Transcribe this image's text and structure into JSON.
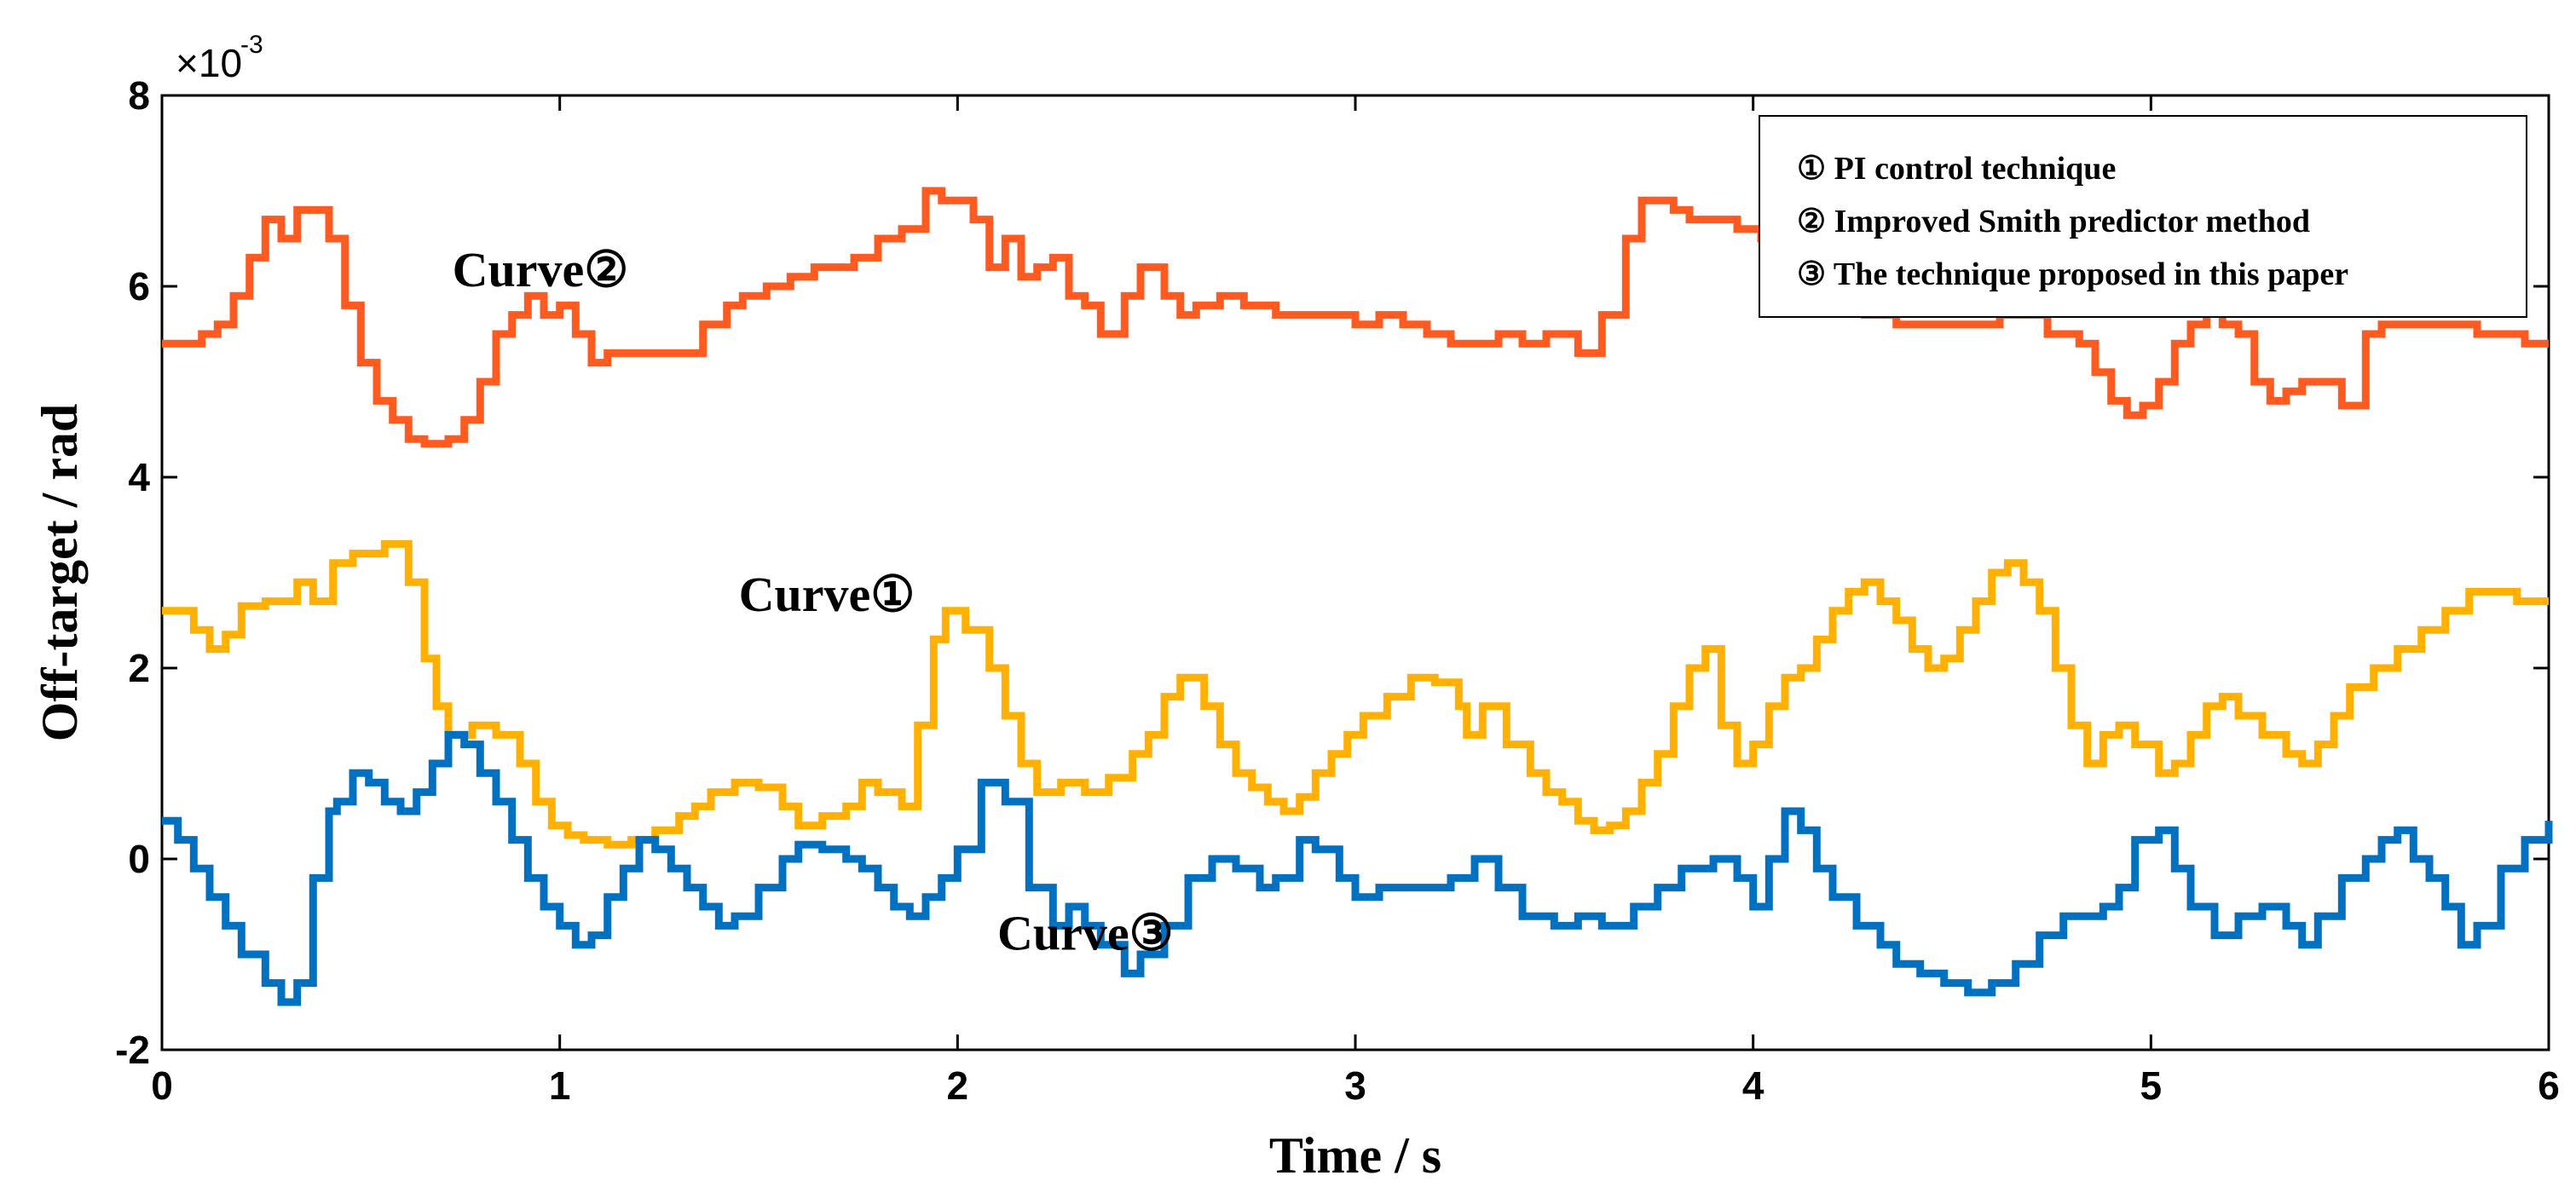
{
  "chart_data": {
    "type": "line",
    "style": "step",
    "xlabel": "Time / s",
    "ylabel": "Off-target / rad",
    "y_scale_factor": "×10",
    "y_scale_exponent": "-3",
    "xlim": [
      0,
      6
    ],
    "ylim": [
      -2,
      8
    ],
    "xticks": [
      "0",
      "1",
      "2",
      "3",
      "4",
      "5",
      "6"
    ],
    "yticks": [
      "-2",
      "0",
      "2",
      "4",
      "6",
      "8"
    ],
    "xtick_values": [
      0,
      1,
      2,
      3,
      4,
      5,
      6
    ],
    "ytick_values": [
      -2,
      0,
      2,
      4,
      6,
      8
    ],
    "legend_position": "top-right",
    "legend": [
      "① PI control technique",
      "② Improved Smith predictor method",
      "③ The technique proposed in this paper"
    ],
    "annotations": [
      {
        "text": "Curve②",
        "x": 0.73,
        "y": 6.0
      },
      {
        "text": "Curve①",
        "x": 1.45,
        "y": 2.6
      },
      {
        "text": "Curve③",
        "x": 2.1,
        "y": -0.95
      }
    ],
    "series": [
      {
        "name": "Curve① PI control technique",
        "color": "#FFB000",
        "x": [
          0,
          0.08,
          0.12,
          0.16,
          0.2,
          0.26,
          0.34,
          0.38,
          0.43,
          0.48,
          0.56,
          0.62,
          0.66,
          0.69,
          0.72,
          0.78,
          0.84,
          0.9,
          0.94,
          0.98,
          1.02,
          1.06,
          1.12,
          1.18,
          1.24,
          1.3,
          1.34,
          1.38,
          1.44,
          1.5,
          1.56,
          1.6,
          1.66,
          1.72,
          1.76,
          1.8,
          1.86,
          1.9,
          1.94,
          1.97,
          2.02,
          2.08,
          2.12,
          2.16,
          2.2,
          2.26,
          2.32,
          2.38,
          2.44,
          2.48,
          2.52,
          2.56,
          2.62,
          2.66,
          2.7,
          2.74,
          2.78,
          2.82,
          2.86,
          2.9,
          2.94,
          2.98,
          3.02,
          3.08,
          3.14,
          3.2,
          3.26,
          3.28,
          3.32,
          3.38,
          3.44,
          3.48,
          3.52,
          3.56,
          3.6,
          3.64,
          3.68,
          3.72,
          3.76,
          3.8,
          3.84,
          3.88,
          3.92,
          3.96,
          4.0,
          4.04,
          4.08,
          4.12,
          4.16,
          4.2,
          4.24,
          4.28,
          4.32,
          4.36,
          4.4,
          4.44,
          4.48,
          4.52,
          4.56,
          4.6,
          4.64,
          4.68,
          4.72,
          4.76,
          4.8,
          4.84,
          4.88,
          4.92,
          4.96,
          5.02,
          5.06,
          5.1,
          5.14,
          5.18,
          5.22,
          5.28,
          5.34,
          5.38,
          5.42,
          5.46,
          5.5,
          5.56,
          5.62,
          5.68,
          5.74,
          5.8,
          5.86,
          5.92,
          5.96,
          6.0
        ],
        "y": [
          2.6,
          2.4,
          2.2,
          2.35,
          2.65,
          2.7,
          2.9,
          2.7,
          3.1,
          3.2,
          3.3,
          2.9,
          2.1,
          1.6,
          1.3,
          1.4,
          1.3,
          1.0,
          0.6,
          0.35,
          0.25,
          0.2,
          0.15,
          0.2,
          0.3,
          0.45,
          0.55,
          0.7,
          0.8,
          0.75,
          0.55,
          0.35,
          0.45,
          0.55,
          0.8,
          0.7,
          0.55,
          1.4,
          2.3,
          2.6,
          2.4,
          2.0,
          1.5,
          1.0,
          0.7,
          0.8,
          0.7,
          0.85,
          1.1,
          1.3,
          1.7,
          1.9,
          1.6,
          1.2,
          0.9,
          0.75,
          0.6,
          0.5,
          0.65,
          0.9,
          1.1,
          1.3,
          1.5,
          1.7,
          1.9,
          1.85,
          1.6,
          1.3,
          1.6,
          1.2,
          0.9,
          0.7,
          0.6,
          0.4,
          0.3,
          0.35,
          0.5,
          0.8,
          1.1,
          1.6,
          2.0,
          2.2,
          1.4,
          1.0,
          1.2,
          1.6,
          1.9,
          2.0,
          2.3,
          2.6,
          2.8,
          2.9,
          2.7,
          2.5,
          2.2,
          2.0,
          2.1,
          2.4,
          2.7,
          3.0,
          3.1,
          2.9,
          2.6,
          2.0,
          1.4,
          1.0,
          1.3,
          1.4,
          1.2,
          0.9,
          1.0,
          1.3,
          1.6,
          1.7,
          1.5,
          1.3,
          1.1,
          1.0,
          1.2,
          1.5,
          1.8,
          2.0,
          2.2,
          2.4,
          2.6,
          2.8,
          2.8,
          2.7,
          2.7,
          2.7
        ]
      },
      {
        "name": "Curve② Improved Smith predictor method",
        "color": "#FF5A1F",
        "x": [
          0,
          0.06,
          0.1,
          0.14,
          0.18,
          0.22,
          0.26,
          0.3,
          0.34,
          0.42,
          0.46,
          0.5,
          0.54,
          0.58,
          0.62,
          0.66,
          0.72,
          0.76,
          0.8,
          0.84,
          0.88,
          0.92,
          0.96,
          1.0,
          1.04,
          1.08,
          1.12,
          1.16,
          1.2,
          1.24,
          1.3,
          1.36,
          1.42,
          1.46,
          1.52,
          1.58,
          1.64,
          1.7,
          1.74,
          1.8,
          1.86,
          1.92,
          1.96,
          2.04,
          2.08,
          2.12,
          2.16,
          2.2,
          2.24,
          2.28,
          2.32,
          2.36,
          2.42,
          2.46,
          2.52,
          2.56,
          2.6,
          2.66,
          2.72,
          2.8,
          2.86,
          2.92,
          3.0,
          3.06,
          3.12,
          3.18,
          3.24,
          3.3,
          3.36,
          3.42,
          3.48,
          3.56,
          3.62,
          3.68,
          3.72,
          3.76,
          3.8,
          3.84,
          3.9,
          3.96,
          4.02,
          4.06,
          4.12,
          4.18,
          4.22,
          4.28,
          4.36,
          4.42,
          4.5,
          4.56,
          4.62,
          4.68,
          4.74,
          4.78,
          4.82,
          4.86,
          4.9,
          4.94,
          4.98,
          5.02,
          5.06,
          5.1,
          5.14,
          5.18,
          5.22,
          5.26,
          5.3,
          5.34,
          5.38,
          5.42,
          5.48,
          5.54,
          5.58,
          5.64,
          5.7,
          5.76,
          5.82,
          5.88,
          5.94,
          6.0
        ],
        "y": [
          5.4,
          5.4,
          5.5,
          5.6,
          5.9,
          6.3,
          6.7,
          6.5,
          6.8,
          6.5,
          5.8,
          5.2,
          4.8,
          4.6,
          4.4,
          4.35,
          4.4,
          4.6,
          5.0,
          5.5,
          5.7,
          5.9,
          5.7,
          5.8,
          5.5,
          5.2,
          5.3,
          5.3,
          5.3,
          5.3,
          5.3,
          5.6,
          5.8,
          5.9,
          6.0,
          6.1,
          6.2,
          6.2,
          6.3,
          6.5,
          6.6,
          7.0,
          6.9,
          6.7,
          6.2,
          6.5,
          6.1,
          6.2,
          6.3,
          5.9,
          5.8,
          5.5,
          5.9,
          6.2,
          5.9,
          5.7,
          5.8,
          5.9,
          5.8,
          5.7,
          5.7,
          5.7,
          5.6,
          5.7,
          5.6,
          5.5,
          5.4,
          5.4,
          5.5,
          5.4,
          5.5,
          5.3,
          5.7,
          6.5,
          6.9,
          6.9,
          6.8,
          6.7,
          6.7,
          6.6,
          6.5,
          6.4,
          6.2,
          6.0,
          5.8,
          5.7,
          5.6,
          5.6,
          5.6,
          5.6,
          5.7,
          5.7,
          5.5,
          5.5,
          5.4,
          5.1,
          4.8,
          4.65,
          4.75,
          5.0,
          5.4,
          5.6,
          5.8,
          5.6,
          5.5,
          5.0,
          4.8,
          4.9,
          5.0,
          5.0,
          4.75,
          5.5,
          5.6,
          5.6,
          5.6,
          5.6,
          5.5,
          5.5,
          5.4,
          5.4
        ]
      },
      {
        "name": "Curve③ The technique proposed in this paper",
        "color": "#0070C0",
        "x": [
          0,
          0.04,
          0.08,
          0.12,
          0.16,
          0.2,
          0.26,
          0.3,
          0.34,
          0.38,
          0.42,
          0.44,
          0.48,
          0.52,
          0.56,
          0.6,
          0.64,
          0.68,
          0.72,
          0.76,
          0.8,
          0.84,
          0.88,
          0.92,
          0.96,
          1.0,
          1.04,
          1.08,
          1.12,
          1.16,
          1.2,
          1.24,
          1.28,
          1.32,
          1.36,
          1.4,
          1.44,
          1.5,
          1.56,
          1.6,
          1.66,
          1.72,
          1.76,
          1.8,
          1.84,
          1.88,
          1.92,
          1.96,
          2.0,
          2.06,
          2.12,
          2.18,
          2.24,
          2.28,
          2.32,
          2.36,
          2.42,
          2.46,
          2.52,
          2.58,
          2.64,
          2.7,
          2.76,
          2.8,
          2.86,
          2.9,
          2.96,
          3.0,
          3.06,
          3.12,
          3.18,
          3.24,
          3.3,
          3.36,
          3.42,
          3.5,
          3.56,
          3.62,
          3.7,
          3.76,
          3.82,
          3.86,
          3.9,
          3.96,
          4.0,
          4.04,
          4.08,
          4.12,
          4.16,
          4.2,
          4.26,
          4.32,
          4.36,
          4.42,
          4.48,
          4.54,
          4.6,
          4.66,
          4.72,
          4.78,
          4.84,
          4.88,
          4.92,
          4.96,
          5.02,
          5.06,
          5.1,
          5.16,
          5.22,
          5.28,
          5.34,
          5.38,
          5.42,
          5.48,
          5.54,
          5.58,
          5.62,
          5.66,
          5.7,
          5.74,
          5.78,
          5.82,
          5.88,
          5.94,
          6.0
        ],
        "y": [
          0.4,
          0.2,
          -0.1,
          -0.4,
          -0.7,
          -1.0,
          -1.3,
          -1.5,
          -1.3,
          -0.2,
          0.5,
          0.6,
          0.9,
          0.8,
          0.6,
          0.5,
          0.7,
          1.0,
          1.3,
          1.2,
          0.9,
          0.6,
          0.2,
          -0.2,
          -0.5,
          -0.7,
          -0.9,
          -0.8,
          -0.4,
          -0.1,
          0.2,
          0.1,
          -0.1,
          -0.3,
          -0.5,
          -0.7,
          -0.6,
          -0.3,
          0.0,
          0.15,
          0.1,
          0.0,
          -0.1,
          -0.3,
          -0.5,
          -0.6,
          -0.4,
          -0.2,
          0.1,
          0.8,
          0.6,
          -0.3,
          -0.7,
          -0.5,
          -0.7,
          -0.9,
          -1.2,
          -1.0,
          -0.7,
          -0.2,
          0.0,
          -0.1,
          -0.3,
          -0.2,
          0.2,
          0.1,
          -0.2,
          -0.4,
          -0.3,
          -0.3,
          -0.3,
          -0.2,
          0.0,
          -0.3,
          -0.6,
          -0.7,
          -0.6,
          -0.7,
          -0.5,
          -0.3,
          -0.1,
          -0.1,
          0.0,
          -0.2,
          -0.5,
          0.0,
          0.5,
          0.3,
          -0.1,
          -0.4,
          -0.7,
          -0.9,
          -1.1,
          -1.2,
          -1.3,
          -1.4,
          -1.3,
          -1.1,
          -0.8,
          -0.6,
          -0.6,
          -0.5,
          -0.3,
          0.2,
          0.3,
          -0.1,
          -0.5,
          -0.8,
          -0.6,
          -0.5,
          -0.7,
          -0.9,
          -0.6,
          -0.2,
          0.0,
          0.2,
          0.3,
          0.0,
          -0.2,
          -0.5,
          -0.9,
          -0.7,
          -0.1,
          0.2,
          0.4
        ]
      }
    ]
  }
}
